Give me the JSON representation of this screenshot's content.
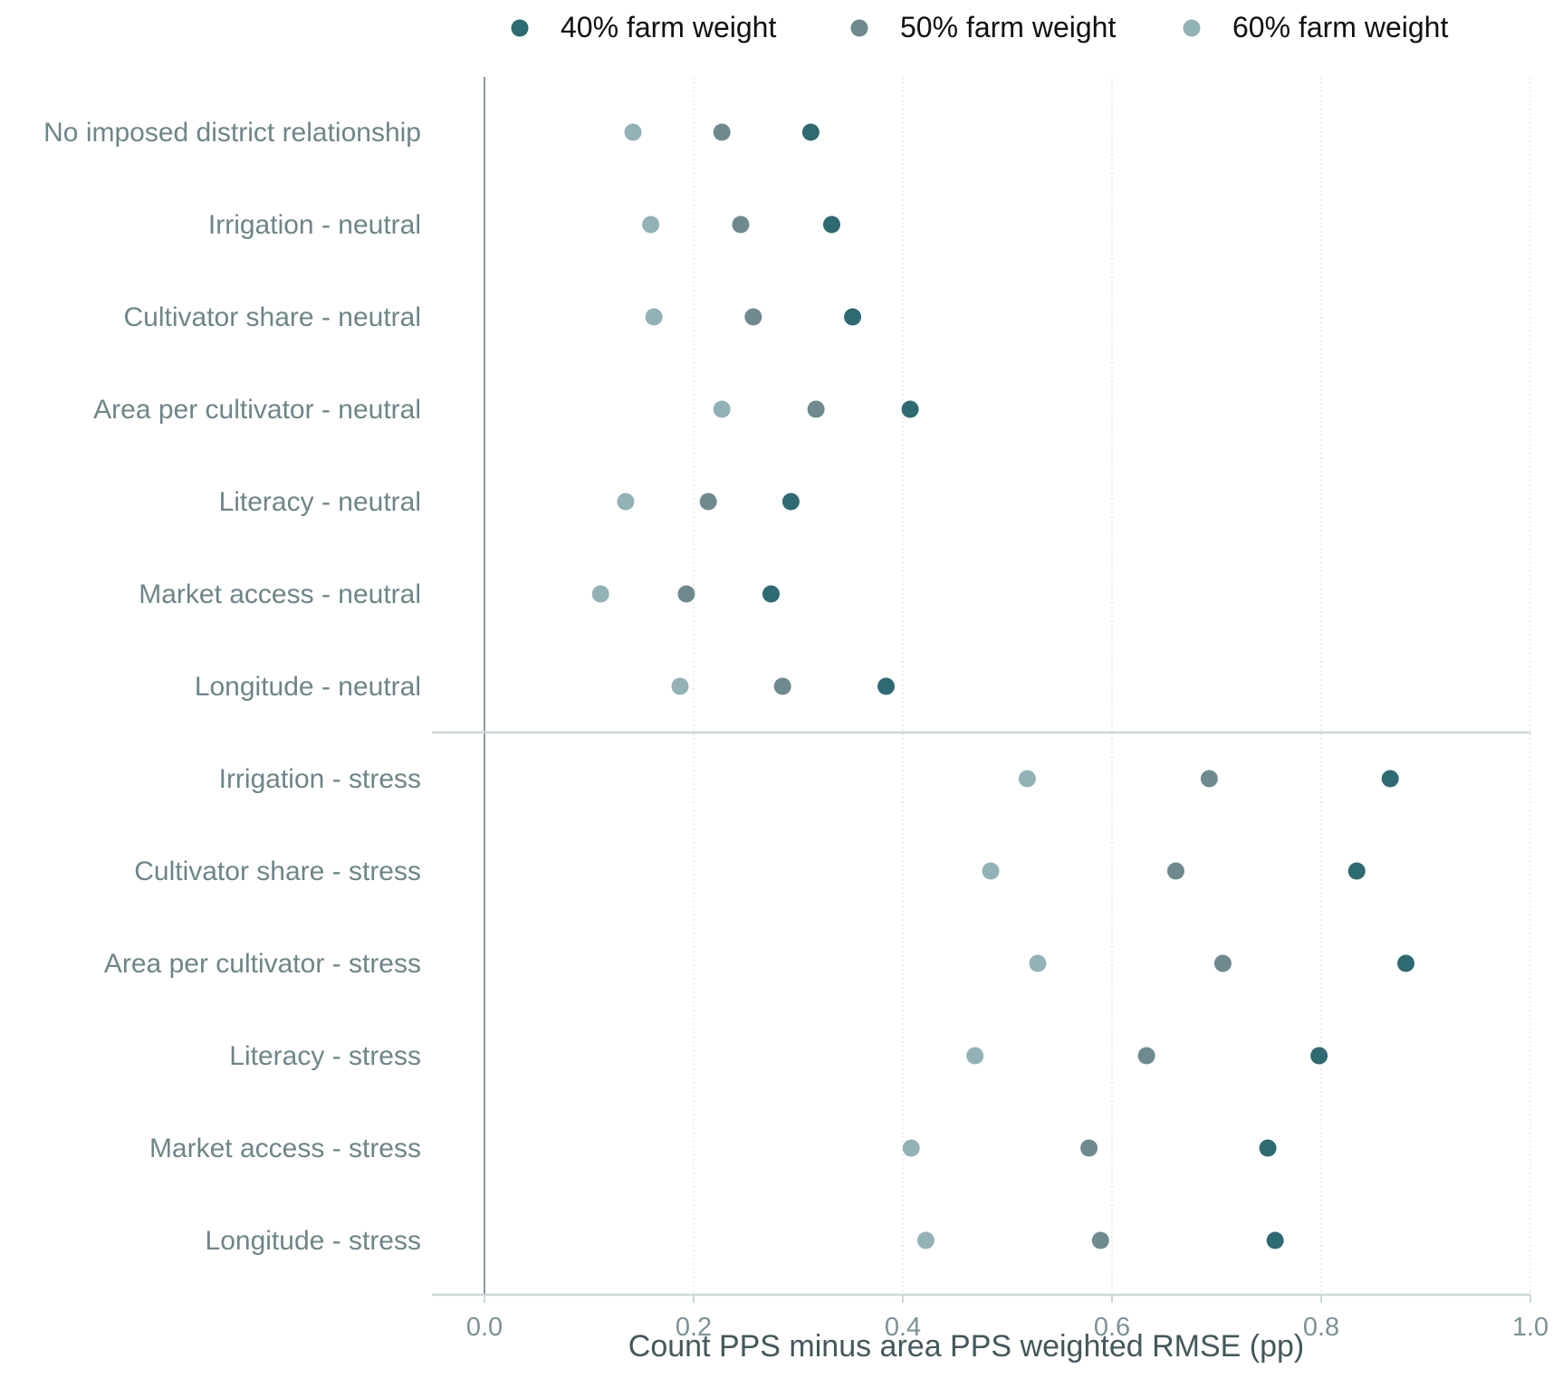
{
  "chart_data": {
    "type": "scatter",
    "xlabel": "Count PPS minus area PPS weighted RMSE (pp)",
    "xlim": [
      0,
      1.0
    ],
    "xlim_display": [
      -0.05,
      1.0
    ],
    "xticks": [
      0.0,
      0.2,
      0.4,
      0.6,
      0.8,
      1.0
    ],
    "xtick_labels": [
      "0.0",
      "0.2",
      "0.4",
      "0.6",
      "0.8",
      "1.0"
    ],
    "grid": "vertical dotted at x ticks",
    "legend_position": "top",
    "reference_line_x": 0,
    "divider_after_category_index": 6,
    "categories": [
      "No imposed district relationship",
      "Irrigation - neutral",
      "Cultivator share - neutral",
      "Area per cultivator - neutral",
      "Literacy - neutral",
      "Market access - neutral",
      "Longitude - neutral",
      "Irrigation - stress",
      "Cultivator share - stress",
      "Area per cultivator - stress",
      "Literacy - stress",
      "Market access - stress",
      "Longitude - stress"
    ],
    "series": [
      {
        "name": "40% farm weight",
        "color": "#2e6a72",
        "values": [
          0.312,
          0.332,
          0.352,
          0.407,
          0.293,
          0.274,
          0.384,
          0.866,
          0.834,
          0.881,
          0.798,
          0.749,
          0.756
        ]
      },
      {
        "name": "50% farm weight",
        "color": "#6e8a8e",
        "values": [
          0.227,
          0.245,
          0.257,
          0.317,
          0.214,
          0.193,
          0.285,
          0.693,
          0.661,
          0.706,
          0.633,
          0.578,
          0.589
        ]
      },
      {
        "name": "60% farm weight",
        "color": "#93b2b8",
        "values": [
          0.142,
          0.159,
          0.162,
          0.227,
          0.135,
          0.111,
          0.187,
          0.519,
          0.484,
          0.529,
          0.469,
          0.408,
          0.422
        ]
      }
    ]
  }
}
